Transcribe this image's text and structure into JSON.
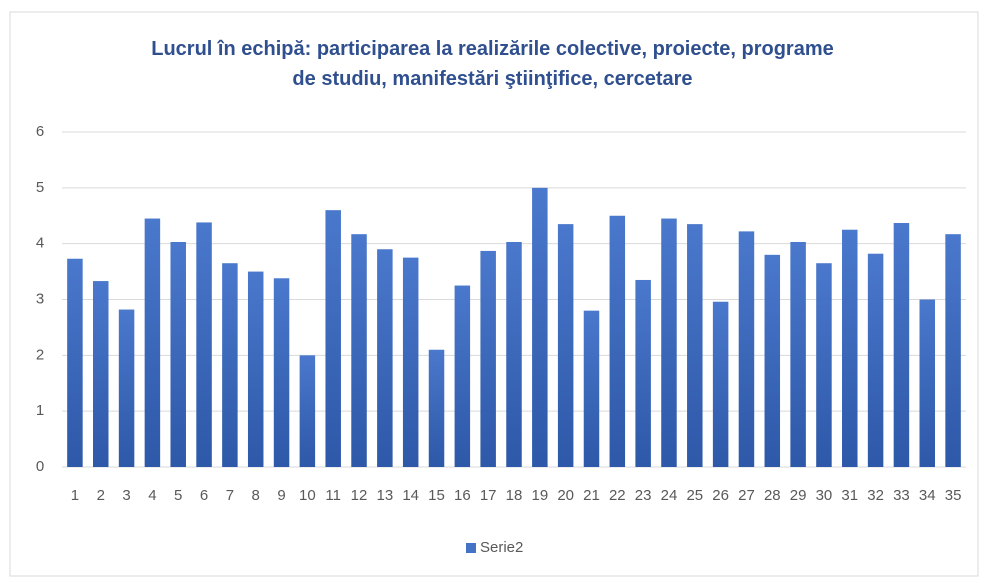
{
  "chart_data": {
    "type": "bar",
    "title": "Lucrul în echipă: participarea la realizările colective, proiecte, programe de studiu, manifestări ştiinţifice, cercetare",
    "categories": [
      "1",
      "2",
      "3",
      "4",
      "5",
      "6",
      "7",
      "8",
      "9",
      "10",
      "11",
      "12",
      "13",
      "14",
      "15",
      "16",
      "17",
      "18",
      "19",
      "20",
      "21",
      "22",
      "23",
      "24",
      "25",
      "26",
      "27",
      "28",
      "29",
      "30",
      "31",
      "32",
      "33",
      "34",
      "35"
    ],
    "series": [
      {
        "name": "Serie2",
        "color": "#4472c4",
        "values": [
          3.73,
          3.33,
          2.82,
          4.45,
          4.03,
          4.38,
          3.65,
          3.5,
          3.38,
          2.0,
          4.6,
          4.17,
          3.9,
          3.75,
          2.1,
          3.25,
          3.87,
          4.03,
          5.0,
          4.35,
          2.8,
          4.5,
          3.35,
          4.45,
          4.35,
          2.96,
          4.22,
          3.8,
          4.03,
          3.65,
          4.25,
          3.82,
          4.37,
          3.0,
          4.17
        ]
      }
    ],
    "ylim": [
      0,
      6
    ],
    "yticks": [
      0,
      1,
      2,
      3,
      4,
      5,
      6
    ],
    "grid": true,
    "legend": "bottom"
  }
}
